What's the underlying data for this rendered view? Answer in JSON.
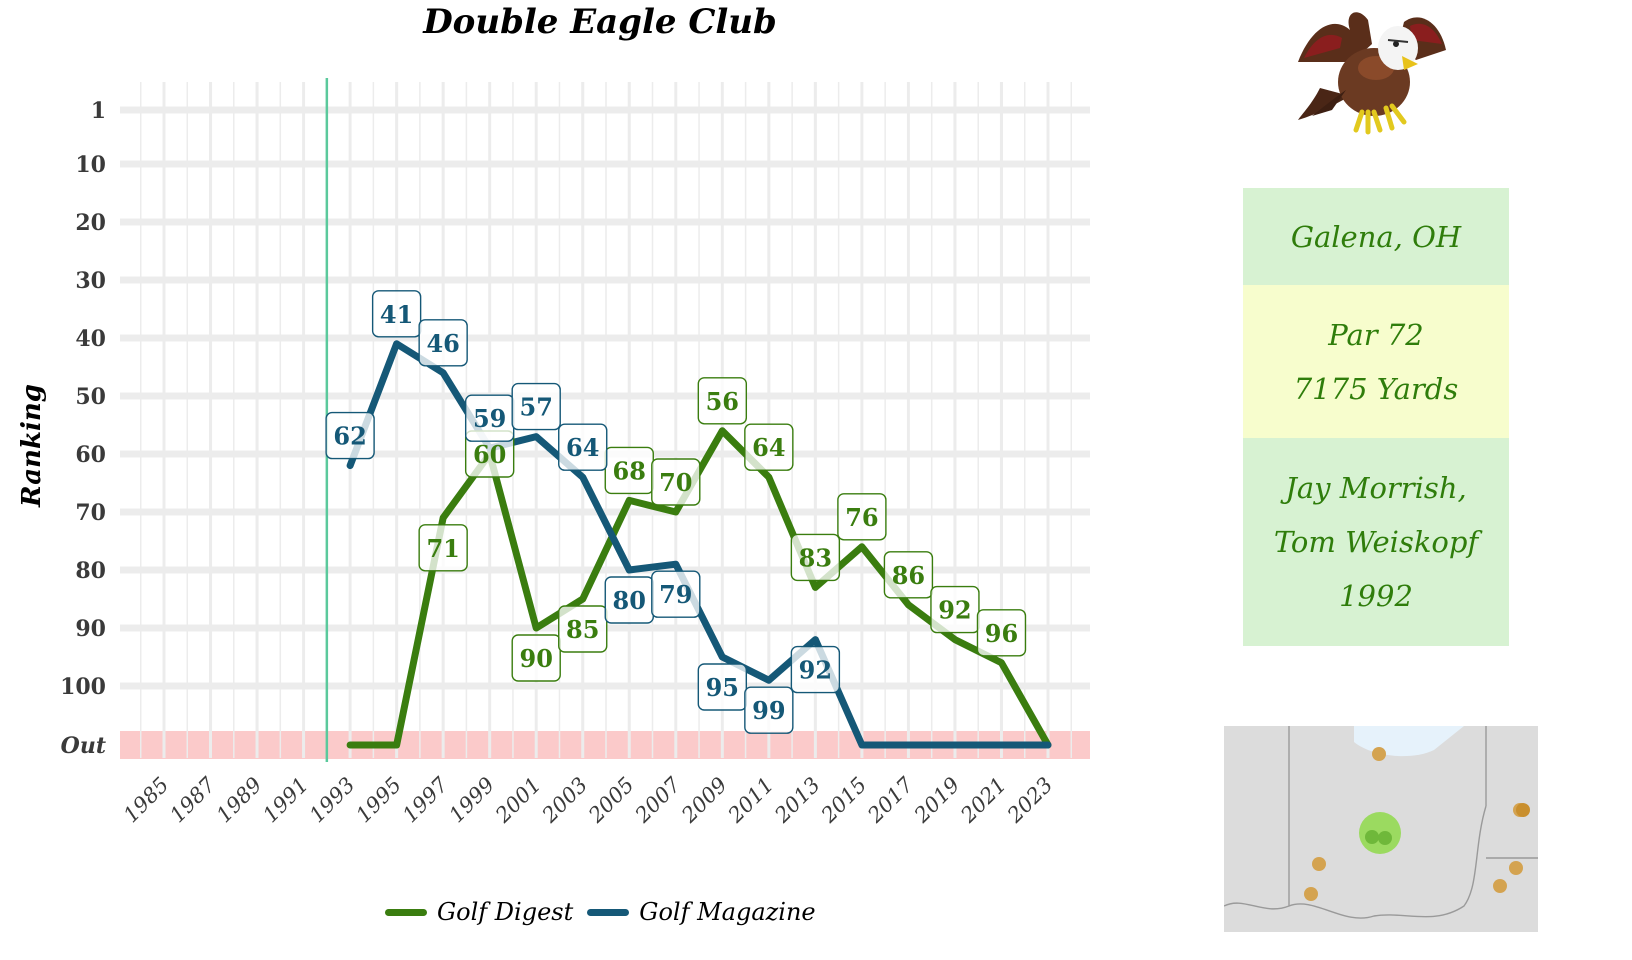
{
  "chart_data": {
    "type": "line",
    "title": "Double Eagle Club",
    "xlabel": "",
    "ylabel": "Ranking",
    "x_ticks": [
      "1985",
      "1987",
      "1989",
      "1991",
      "1993",
      "1995",
      "1997",
      "1999",
      "2001",
      "2003",
      "2005",
      "2007",
      "2009",
      "2011",
      "2013",
      "2015",
      "2017",
      "2019",
      "2021",
      "2023"
    ],
    "xlim": [
      1984,
      2024
    ],
    "y_ticks": [
      "1",
      "10",
      "20",
      "30",
      "40",
      "50",
      "60",
      "70",
      "80",
      "90",
      "100",
      "Out"
    ],
    "y_inverted": true,
    "out_value": 110,
    "founded_year": 1992,
    "legend_position": "bottom",
    "series": [
      {
        "name": "Golf Digest",
        "color": "#3a7d0f",
        "points": [
          {
            "x": 1993,
            "y": "Out"
          },
          {
            "x": 1995,
            "y": "Out"
          },
          {
            "x": 1997,
            "y": 71
          },
          {
            "x": 1999,
            "y": 60
          },
          {
            "x": 2001,
            "y": 90
          },
          {
            "x": 2003,
            "y": 85
          },
          {
            "x": 2005,
            "y": 68
          },
          {
            "x": 2007,
            "y": 70
          },
          {
            "x": 2009,
            "y": 56
          },
          {
            "x": 2011,
            "y": 64
          },
          {
            "x": 2013,
            "y": 83
          },
          {
            "x": 2015,
            "y": 76
          },
          {
            "x": 2017,
            "y": 86
          },
          {
            "x": 2019,
            "y": 92
          },
          {
            "x": 2021,
            "y": 96
          },
          {
            "x": 2023,
            "y": "Out"
          }
        ]
      },
      {
        "name": "Golf Magazine",
        "color": "#155877",
        "points": [
          {
            "x": 1993,
            "y": 62
          },
          {
            "x": 1995,
            "y": 41
          },
          {
            "x": 1997,
            "y": 46
          },
          {
            "x": 1999,
            "y": 59
          },
          {
            "x": 2001,
            "y": 57
          },
          {
            "x": 2003,
            "y": 64
          },
          {
            "x": 2005,
            "y": 80
          },
          {
            "x": 2007,
            "y": 79
          },
          {
            "x": 2009,
            "y": 95
          },
          {
            "x": 2011,
            "y": 99
          },
          {
            "x": 2013,
            "y": 92
          },
          {
            "x": 2015,
            "y": "Out"
          },
          {
            "x": 2017,
            "y": "Out"
          },
          {
            "x": 2019,
            "y": "Out"
          },
          {
            "x": 2021,
            "y": "Out"
          },
          {
            "x": 2023,
            "y": "Out"
          }
        ]
      }
    ],
    "data_labels": [
      {
        "series": "Golf Digest",
        "x": 1997,
        "text": "71",
        "pos": "below"
      },
      {
        "series": "Golf Digest",
        "x": 1999,
        "text": "60",
        "pos": "center"
      },
      {
        "series": "Golf Digest",
        "x": 2001,
        "text": "90",
        "pos": "below"
      },
      {
        "series": "Golf Digest",
        "x": 2003,
        "text": "85",
        "pos": "below"
      },
      {
        "series": "Golf Digest",
        "x": 2005,
        "text": "68",
        "pos": "above"
      },
      {
        "series": "Golf Digest",
        "x": 2007,
        "text": "70",
        "pos": "above"
      },
      {
        "series": "Golf Digest",
        "x": 2009,
        "text": "56",
        "pos": "above"
      },
      {
        "series": "Golf Digest",
        "x": 2011,
        "text": "64",
        "pos": "above"
      },
      {
        "series": "Golf Digest",
        "x": 2013,
        "text": "83",
        "pos": "above"
      },
      {
        "series": "Golf Digest",
        "x": 2015,
        "text": "76",
        "pos": "above"
      },
      {
        "series": "Golf Digest",
        "x": 2017,
        "text": "86",
        "pos": "above"
      },
      {
        "series": "Golf Digest",
        "x": 2019,
        "text": "92",
        "pos": "above"
      },
      {
        "series": "Golf Digest",
        "x": 2021,
        "text": "96",
        "pos": "above"
      },
      {
        "series": "Golf Magazine",
        "x": 1993,
        "text": "62",
        "pos": "above"
      },
      {
        "series": "Golf Magazine",
        "x": 1995,
        "text": "41",
        "pos": "above"
      },
      {
        "series": "Golf Magazine",
        "x": 1997,
        "text": "46",
        "pos": "above"
      },
      {
        "series": "Golf Magazine",
        "x": 1999,
        "text": "59",
        "pos": "above"
      },
      {
        "series": "Golf Magazine",
        "x": 2001,
        "text": "57",
        "pos": "above"
      },
      {
        "series": "Golf Magazine",
        "x": 2003,
        "text": "64",
        "pos": "above"
      },
      {
        "series": "Golf Magazine",
        "x": 2005,
        "text": "80",
        "pos": "below"
      },
      {
        "series": "Golf Magazine",
        "x": 2007,
        "text": "79",
        "pos": "below"
      },
      {
        "series": "Golf Magazine",
        "x": 2009,
        "text": "95",
        "pos": "below"
      },
      {
        "series": "Golf Magazine",
        "x": 2011,
        "text": "99",
        "pos": "below"
      },
      {
        "series": "Golf Magazine",
        "x": 2013,
        "text": "92",
        "pos": "below"
      }
    ],
    "colors": {
      "founded_line": "#5bc99c",
      "out_band": "#fbcaca",
      "grid": "#ececec"
    }
  },
  "course_info": {
    "location": "Galena, OH",
    "par": "Par 72",
    "yardage": "7175 Yards",
    "architects_line1": "Jay Morrish,",
    "architects_line2": "Tom Weiskopf",
    "year": "1992"
  },
  "icons": {
    "logo": "eagle-mascot-icon",
    "map": "ohio-location-map"
  }
}
